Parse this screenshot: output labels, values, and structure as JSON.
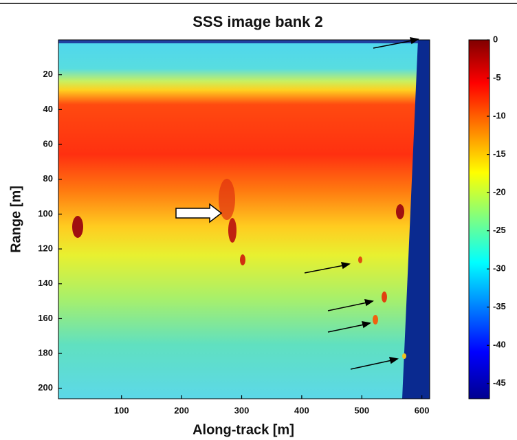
{
  "chart_data": {
    "type": "heatmap",
    "title": "SSS image bank 2",
    "xlabel": "Along-track [m]",
    "ylabel": "Range [m]",
    "xlim": [
      -5,
      613
    ],
    "xticks": [
      100,
      200,
      300,
      400,
      500,
      600
    ],
    "ylim": [
      0,
      206
    ],
    "yticks": [
      20,
      40,
      60,
      80,
      100,
      120,
      140,
      160,
      180,
      200
    ],
    "clim": [
      -47,
      0
    ],
    "cticks": [
      0,
      -5,
      -10,
      -15,
      -20,
      -25,
      -30,
      -35,
      -40,
      -45
    ]
  }
}
